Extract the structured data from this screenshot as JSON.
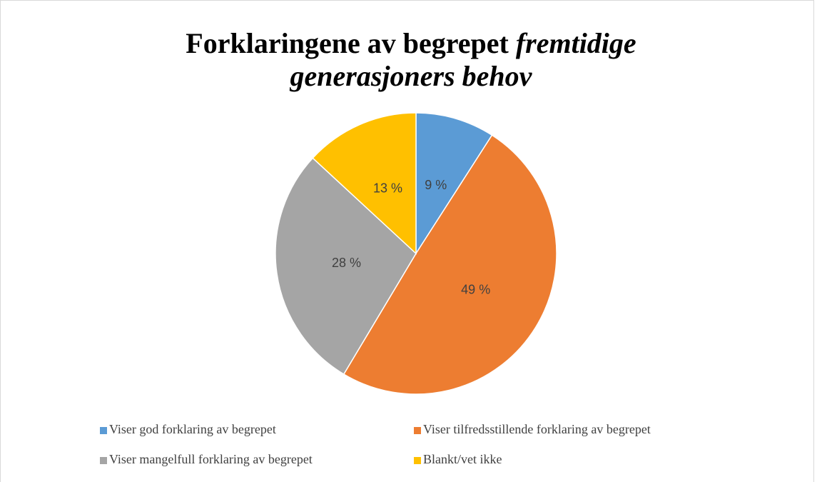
{
  "chart_data": {
    "type": "pie",
    "title": "Forklaringene av begrepet",
    "title_emphasis": "fremtidige generasjoners behov",
    "categories": [
      "Viser god forklaring av begrepet",
      "Viser tilfredsstillende forklaring av begrepet",
      "Viser mangelfull forklaring av begrepet",
      "Blankt/vet ikke"
    ],
    "values": [
      9,
      49,
      28,
      13
    ],
    "value_labels": [
      "9 %",
      "49 %",
      "28 %",
      "13 %"
    ],
    "colors": [
      "#5b9bd5",
      "#ed7d31",
      "#a5a5a5",
      "#ffc000"
    ],
    "legend": "bottom"
  }
}
